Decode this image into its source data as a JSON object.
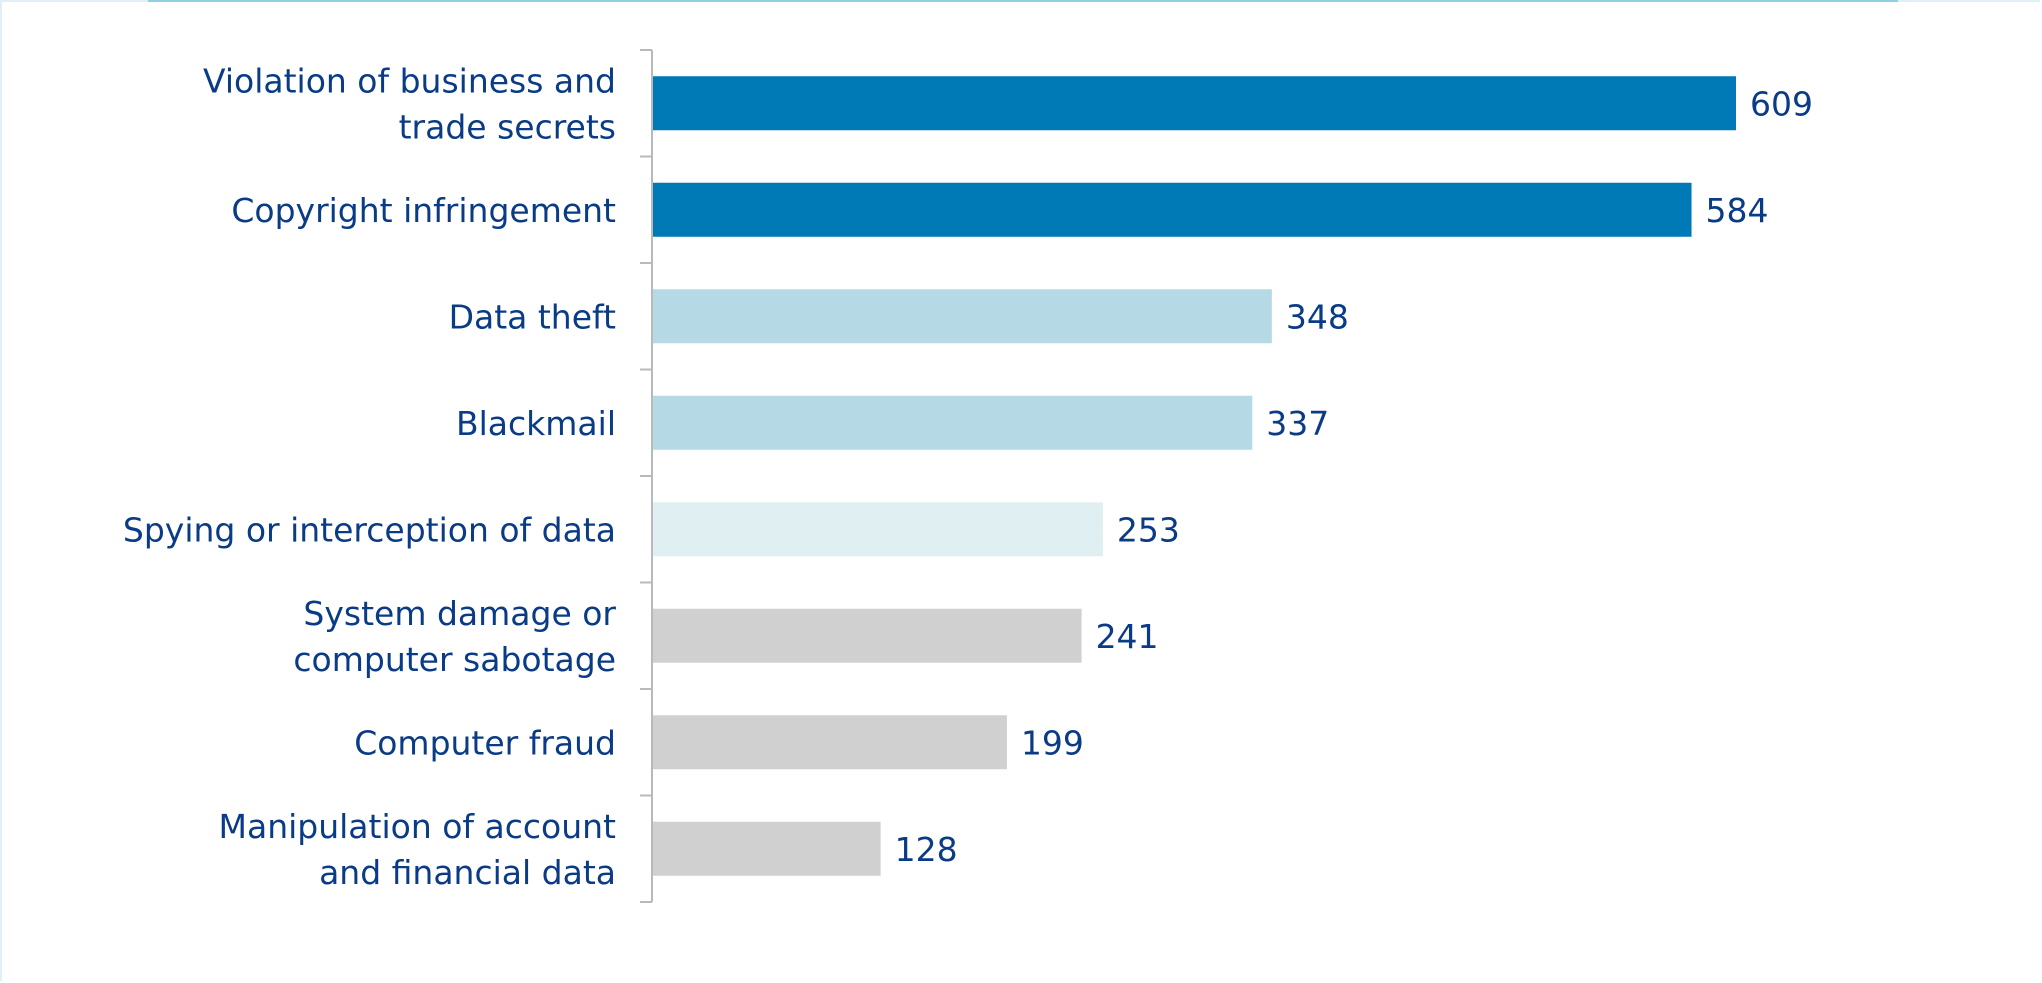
{
  "chart_data": {
    "type": "bar",
    "orientation": "horizontal",
    "categories": [
      [
        "Violation of business and",
        "trade secrets"
      ],
      [
        "Copyright infringement"
      ],
      [
        "Data theft"
      ],
      [
        "Blackmail"
      ],
      [
        "Spying or interception of data"
      ],
      [
        "System damage or",
        "computer sabotage"
      ],
      [
        "Computer fraud"
      ],
      [
        "Manipulation of account",
        "and financial data"
      ]
    ],
    "values": [
      609,
      584,
      348,
      337,
      253,
      241,
      199,
      128
    ],
    "value_labels": [
      "609",
      "584",
      "348",
      "337",
      "253",
      "241",
      "199",
      "128"
    ],
    "bar_colors": [
      "#0079b7",
      "#0079b7",
      "#b6dae5",
      "#b6dae5",
      "#dfeff2",
      "#d0d0d0",
      "#d0d0d0",
      "#d0d0d0"
    ],
    "title": "",
    "xlabel": "",
    "ylabel": "",
    "xlim": [
      0,
      609
    ],
    "grid": false,
    "legend": "none"
  },
  "colors": {
    "label_text": "#0a3b86",
    "axis": "#b9b9b9",
    "frame": "#dff0f4",
    "accent": "#8fd0e0"
  }
}
